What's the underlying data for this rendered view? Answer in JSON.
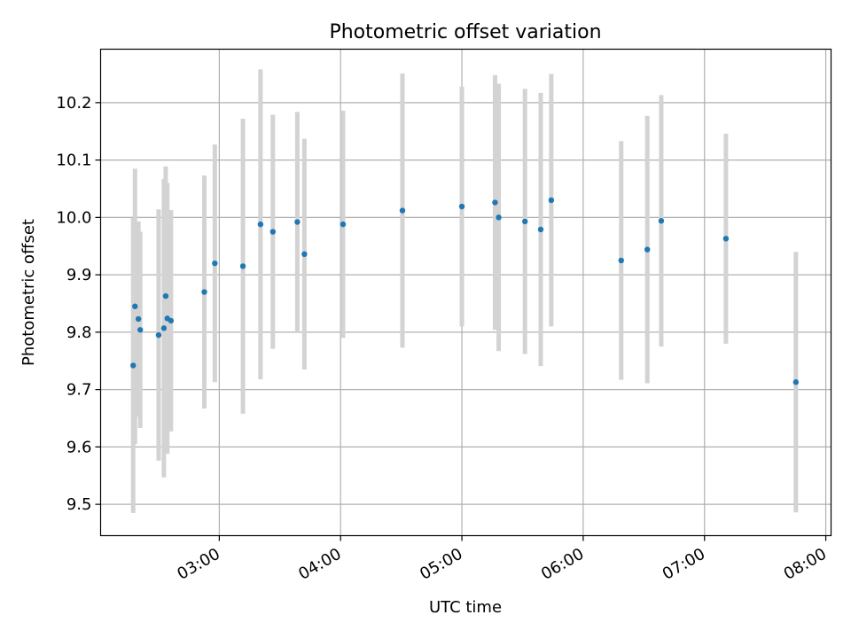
{
  "chart_data": {
    "type": "scatter",
    "title": "Photometric offset variation",
    "xlabel": "UTC time",
    "ylabel": "Photometric offset",
    "x_unit": "minutes after midnight UTC",
    "xlim": [
      121.3,
      482.6
    ],
    "ylim": [
      9.4454,
      10.2932
    ],
    "x_ticks": [
      {
        "value": 180,
        "label": "03:00"
      },
      {
        "value": 240,
        "label": "04:00"
      },
      {
        "value": 300,
        "label": "05:00"
      },
      {
        "value": 360,
        "label": "06:00"
      },
      {
        "value": 420,
        "label": "07:00"
      },
      {
        "value": 480,
        "label": "08:00"
      }
    ],
    "y_ticks": [
      {
        "value": 9.5,
        "label": "9.5"
      },
      {
        "value": 9.6,
        "label": "9.6"
      },
      {
        "value": 9.7,
        "label": "9.7"
      },
      {
        "value": 9.8,
        "label": "9.8"
      },
      {
        "value": 9.9,
        "label": "9.9"
      },
      {
        "value": 10.0,
        "label": "10.0"
      },
      {
        "value": 10.1,
        "label": "10.1"
      },
      {
        "value": 10.2,
        "label": "10.2"
      }
    ],
    "grid": true,
    "colors": {
      "point": "#1f77b4",
      "errorbar": "#d3d3d3",
      "grid": "#b0b0b0"
    },
    "points": [
      {
        "x": 137.4,
        "y": 9.742,
        "err": 0.257
      },
      {
        "x": 138.3,
        "y": 9.845,
        "err": 0.24
      },
      {
        "x": 140.0,
        "y": 9.823,
        "err": 0.17
      },
      {
        "x": 140.9,
        "y": 9.804,
        "err": 0.171
      },
      {
        "x": 150.0,
        "y": 9.795,
        "err": 0.219
      },
      {
        "x": 152.6,
        "y": 9.807,
        "err": 0.26
      },
      {
        "x": 153.5,
        "y": 9.863,
        "err": 0.226
      },
      {
        "x": 154.3,
        "y": 9.824,
        "err": 0.236
      },
      {
        "x": 156.1,
        "y": 9.82,
        "err": 0.193
      },
      {
        "x": 172.6,
        "y": 9.87,
        "err": 0.203
      },
      {
        "x": 177.8,
        "y": 9.92,
        "err": 0.207
      },
      {
        "x": 191.7,
        "y": 9.915,
        "err": 0.257
      },
      {
        "x": 200.4,
        "y": 9.988,
        "err": 0.27
      },
      {
        "x": 206.5,
        "y": 9.975,
        "err": 0.204
      },
      {
        "x": 218.6,
        "y": 9.992,
        "err": 0.192
      },
      {
        "x": 222.1,
        "y": 9.936,
        "err": 0.201
      },
      {
        "x": 241.2,
        "y": 9.988,
        "err": 0.198
      },
      {
        "x": 270.6,
        "y": 10.012,
        "err": 0.239
      },
      {
        "x": 300.0,
        "y": 10.019,
        "err": 0.209
      },
      {
        "x": 316.4,
        "y": 10.026,
        "err": 0.222
      },
      {
        "x": 318.2,
        "y": 10.0,
        "err": 0.233
      },
      {
        "x": 331.2,
        "y": 9.993,
        "err": 0.231
      },
      {
        "x": 339.0,
        "y": 9.979,
        "err": 0.238
      },
      {
        "x": 344.2,
        "y": 10.03,
        "err": 0.22
      },
      {
        "x": 378.8,
        "y": 9.925,
        "err": 0.208
      },
      {
        "x": 391.7,
        "y": 9.944,
        "err": 0.233
      },
      {
        "x": 398.6,
        "y": 9.994,
        "err": 0.219
      },
      {
        "x": 430.6,
        "y": 9.963,
        "err": 0.183
      },
      {
        "x": 465.2,
        "y": 9.713,
        "err": 0.227
      }
    ]
  }
}
